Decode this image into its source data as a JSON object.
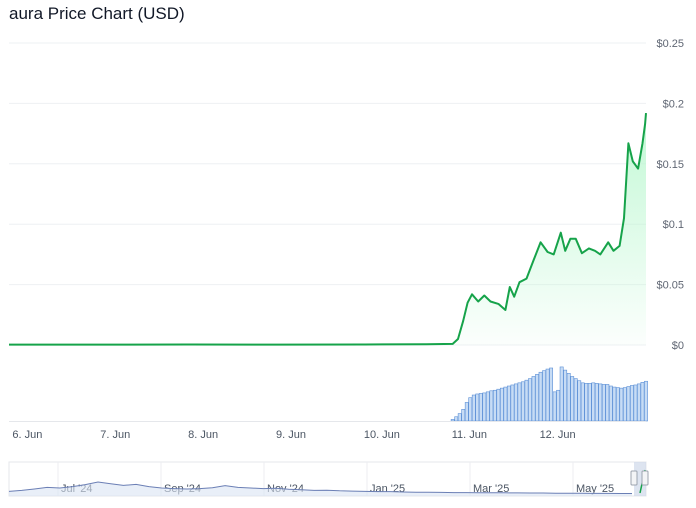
{
  "chart_data": {
    "type": "line",
    "title": "aura Price Chart (USD)",
    "y_ticks": [
      "$0.25",
      "$0.2",
      "$0.15",
      "$0.1",
      "$0.05",
      "$0"
    ],
    "y_tick_values": [
      0.25,
      0.2,
      0.15,
      0.1,
      0.05,
      0
    ],
    "ylim": [
      0,
      0.25
    ],
    "x_ticks": [
      "6. Jun",
      "7. Jun",
      "8. Jun",
      "9. Jun",
      "10. Jun",
      "11. Jun",
      "12. Jun"
    ],
    "xlim": [
      -0.05,
      7.2
    ],
    "grid": true,
    "series": [
      {
        "values": [
          [
            -0.05,
            0.0003
          ],
          [
            1.0,
            0.0003
          ],
          [
            2.0,
            0.0004
          ],
          [
            3.0,
            0.0003
          ],
          [
            4.0,
            0.0004
          ],
          [
            4.7,
            0.0007
          ],
          [
            5.0,
            0.0009
          ],
          [
            5.06,
            0.005
          ],
          [
            5.12,
            0.02
          ],
          [
            5.17,
            0.035
          ],
          [
            5.22,
            0.042
          ],
          [
            5.29,
            0.036
          ],
          [
            5.36,
            0.041
          ],
          [
            5.43,
            0.036
          ],
          [
            5.52,
            0.034
          ],
          [
            5.6,
            0.029
          ],
          [
            5.65,
            0.048
          ],
          [
            5.7,
            0.04
          ],
          [
            5.76,
            0.052
          ],
          [
            5.84,
            0.055
          ],
          [
            5.92,
            0.07
          ],
          [
            6.0,
            0.085
          ],
          [
            6.08,
            0.077
          ],
          [
            6.15,
            0.075
          ],
          [
            6.23,
            0.093
          ],
          [
            6.28,
            0.078
          ],
          [
            6.34,
            0.088
          ],
          [
            6.4,
            0.088
          ],
          [
            6.47,
            0.076
          ],
          [
            6.55,
            0.08
          ],
          [
            6.62,
            0.078
          ],
          [
            6.68,
            0.075
          ],
          [
            6.77,
            0.085
          ],
          [
            6.83,
            0.078
          ],
          [
            6.9,
            0.082
          ],
          [
            6.95,
            0.105
          ],
          [
            7.0,
            0.167
          ],
          [
            7.05,
            0.152
          ],
          [
            7.11,
            0.146
          ],
          [
            7.16,
            0.167
          ],
          [
            7.19,
            0.183
          ],
          [
            7.2,
            0.192
          ]
        ]
      }
    ],
    "volume": [
      [
        5.0,
        0.03
      ],
      [
        5.04,
        0.08
      ],
      [
        5.08,
        0.14
      ],
      [
        5.12,
        0.22
      ],
      [
        5.16,
        0.35
      ],
      [
        5.2,
        0.44
      ],
      [
        5.24,
        0.49
      ],
      [
        5.28,
        0.51
      ],
      [
        5.32,
        0.52
      ],
      [
        5.36,
        0.53
      ],
      [
        5.4,
        0.55
      ],
      [
        5.44,
        0.57
      ],
      [
        5.48,
        0.58
      ],
      [
        5.52,
        0.6
      ],
      [
        5.56,
        0.62
      ],
      [
        5.6,
        0.64
      ],
      [
        5.64,
        0.66
      ],
      [
        5.68,
        0.68
      ],
      [
        5.72,
        0.7
      ],
      [
        5.76,
        0.72
      ],
      [
        5.8,
        0.74
      ],
      [
        5.84,
        0.77
      ],
      [
        5.88,
        0.8
      ],
      [
        5.92,
        0.84
      ],
      [
        5.96,
        0.88
      ],
      [
        6.0,
        0.92
      ],
      [
        6.04,
        0.95
      ],
      [
        6.08,
        0.98
      ],
      [
        6.12,
        1.0
      ],
      [
        6.16,
        0.55
      ],
      [
        6.2,
        0.58
      ],
      [
        6.24,
        1.02
      ],
      [
        6.28,
        0.96
      ],
      [
        6.32,
        0.9
      ],
      [
        6.36,
        0.84
      ],
      [
        6.4,
        0.8
      ],
      [
        6.44,
        0.76
      ],
      [
        6.48,
        0.72
      ],
      [
        6.52,
        0.71
      ],
      [
        6.56,
        0.71
      ],
      [
        6.6,
        0.72
      ],
      [
        6.64,
        0.71
      ],
      [
        6.68,
        0.7
      ],
      [
        6.72,
        0.69
      ],
      [
        6.76,
        0.69
      ],
      [
        6.8,
        0.66
      ],
      [
        6.84,
        0.64
      ],
      [
        6.88,
        0.63
      ],
      [
        6.92,
        0.62
      ],
      [
        6.96,
        0.63
      ],
      [
        7.0,
        0.65
      ],
      [
        7.04,
        0.67
      ],
      [
        7.08,
        0.68
      ],
      [
        7.12,
        0.7
      ],
      [
        7.16,
        0.73
      ],
      [
        7.2,
        0.75
      ]
    ],
    "navigator": {
      "labels": [
        "Jul '24",
        "Sep '24",
        "Nov '24",
        "Jan '25",
        "Mar '25",
        "May '25"
      ],
      "values": [
        0.22,
        0.3,
        0.42,
        0.55,
        0.5,
        0.62,
        0.78,
        1.0,
        0.85,
        0.72,
        0.8,
        0.62,
        0.5,
        0.45,
        0.42,
        0.45,
        0.52,
        0.7,
        0.55,
        0.5,
        0.45,
        0.48,
        0.4,
        0.36,
        0.3,
        0.32,
        0.27,
        0.24,
        0.22,
        0.2,
        0.2,
        0.17,
        0.15,
        0.14,
        0.13,
        0.12,
        0.12,
        0.11,
        0.1,
        0.1,
        0.09,
        0.08,
        0.08,
        0.07,
        0.06,
        0.06,
        0.05,
        0.05,
        0.04,
        0.04
      ]
    },
    "colors": {
      "line": "#16a34a",
      "area_top": "#bbf7d0",
      "volume_fill": "#c7dcf5",
      "volume_stroke": "#5b8fd6",
      "navigator_line": "#6b7fb5",
      "grid": "#eef0f3",
      "text": "#5f6673"
    }
  }
}
